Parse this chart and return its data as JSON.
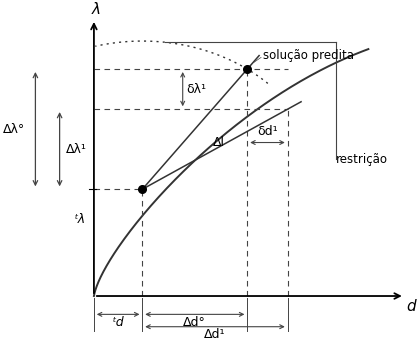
{
  "fig_width": 4.19,
  "fig_height": 3.45,
  "dpi": 100,
  "bg_color": "#ffffff",
  "line_color": "#444444",
  "curve_color": "#333333",
  "axis_color": "#000000",
  "labels": {
    "lambda": "λ",
    "d": "d",
    "solucao_predita": "solução predita",
    "restricao": "restrição",
    "delta_lambda0": "Δλ°",
    "delta_lambda1": "Δλ¹",
    "delta_l": "Δl",
    "delta_d0": "Δd°",
    "delta_d1": "Δd¹",
    "delta_lambda_small": "δλ¹",
    "delta_d_small": "δd¹",
    "t_lambda": "ᵗλ",
    "t_d": "ᵗd"
  },
  "ox": 0.2,
  "oy": 0.14,
  "p1x": 0.32,
  "p1y": 0.46,
  "p2x": 0.58,
  "p2y": 0.82,
  "p3x": 0.68,
  "p3y": 0.7,
  "xlim": [
    0,
    1
  ],
  "ylim": [
    0,
    1
  ]
}
